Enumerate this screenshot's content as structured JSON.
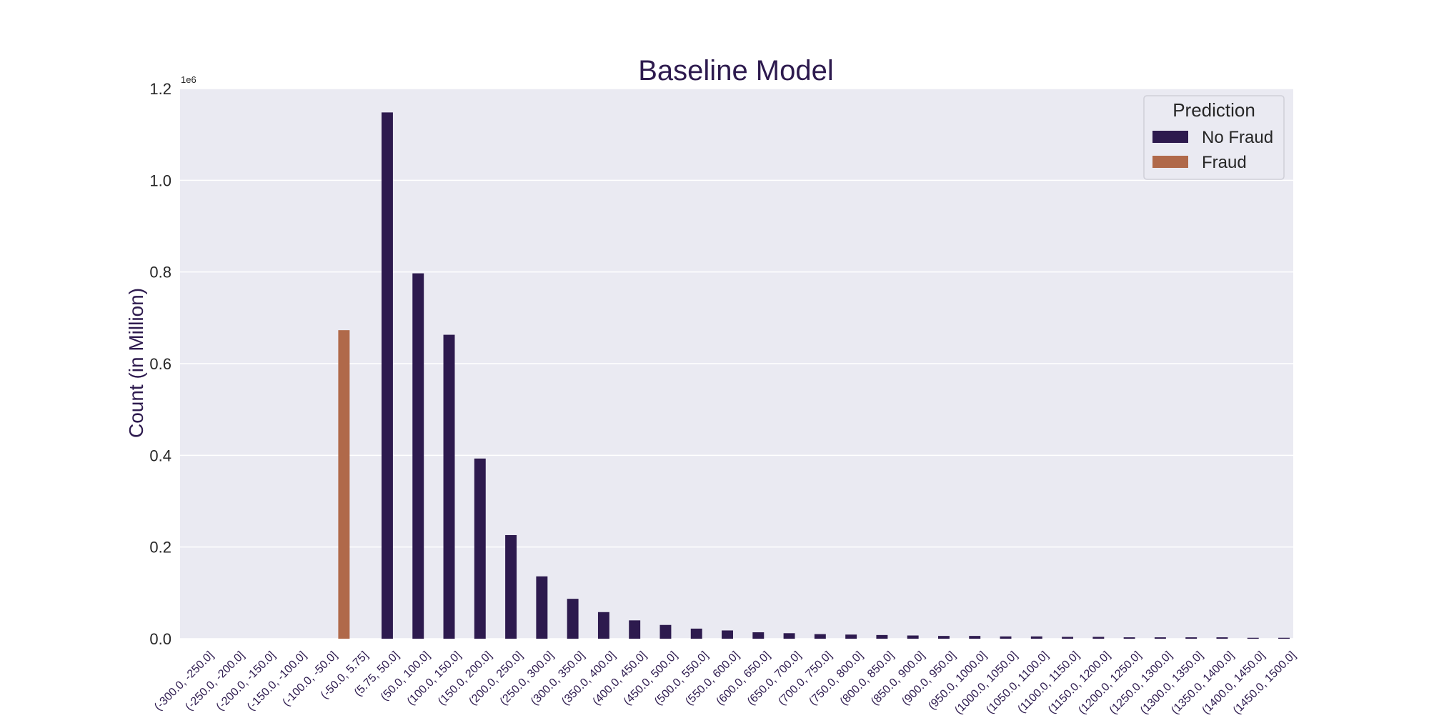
{
  "chart_data": {
    "type": "bar",
    "title": "Baseline Model",
    "xlabel": "",
    "ylabel": "Count (in Million)",
    "y_offset_label": "1e6",
    "ylim": [
      0,
      1.2
    ],
    "y_ticks": [
      "0.0",
      "0.2",
      "0.4",
      "0.6",
      "0.8",
      "1.0",
      "1.2"
    ],
    "grid": true,
    "legend": {
      "title": "Prediction",
      "placement": "top-right"
    },
    "categories": [
      "(-300.0, -250.0]",
      "(-250.0, -200.0]",
      "(-200.0, -150.0]",
      "(-150.0, -100.0]",
      "(-100.0, -50.0]",
      "(-50.0, 5.75]",
      "(5.75, 50.0]",
      "(50.0, 100.0]",
      "(100.0, 150.0]",
      "(150.0, 200.0]",
      "(200.0, 250.0]",
      "(250.0, 300.0]",
      "(300.0, 350.0]",
      "(350.0, 400.0]",
      "(400.0, 450.0]",
      "(450.0, 500.0]",
      "(500.0, 550.0]",
      "(550.0, 600.0]",
      "(600.0, 650.0]",
      "(650.0, 700.0]",
      "(700.0, 750.0]",
      "(750.0, 800.0]",
      "(800.0, 850.0]",
      "(850.0, 900.0]",
      "(900.0, 950.0]",
      "(950.0, 1000.0]",
      "(1000.0, 1050.0]",
      "(1050.0, 1100.0]",
      "(1100.0, 1150.0]",
      "(1150.0, 1200.0]",
      "(1200.0, 1250.0]",
      "(1250.0, 1300.0]",
      "(1300.0, 1350.0]",
      "(1350.0, 1400.0]",
      "(1400.0, 1450.0]",
      "(1450.0, 1500.0]"
    ],
    "series": [
      {
        "name": "No Fraud",
        "color": "#2d1a4e",
        "values": [
          0,
          0,
          0,
          0,
          0,
          0,
          1.148,
          0.797,
          0.663,
          0.393,
          0.226,
          0.136,
          0.087,
          0.058,
          0.04,
          0.03,
          0.022,
          0.018,
          0.014,
          0.012,
          0.01,
          0.009,
          0.008,
          0.007,
          0.006,
          0.006,
          0.005,
          0.005,
          0.004,
          0.004,
          0.003,
          0.003,
          0.003,
          0.003,
          0.002,
          0.002
        ]
      },
      {
        "name": "Fraud",
        "color": "#b0694a",
        "values": [
          0,
          0,
          0,
          0,
          0,
          0.673,
          0,
          0,
          0,
          0,
          0,
          0,
          0,
          0,
          0,
          0,
          0,
          0,
          0,
          0,
          0,
          0,
          0,
          0,
          0,
          0,
          0,
          0,
          0,
          0,
          0,
          0,
          0,
          0,
          0,
          0
        ]
      }
    ]
  },
  "colors": {
    "plot_background": "#eaeaf2",
    "grid": "#ffffff",
    "title_text": "#2d1a4e",
    "axis_text": "#262626"
  }
}
